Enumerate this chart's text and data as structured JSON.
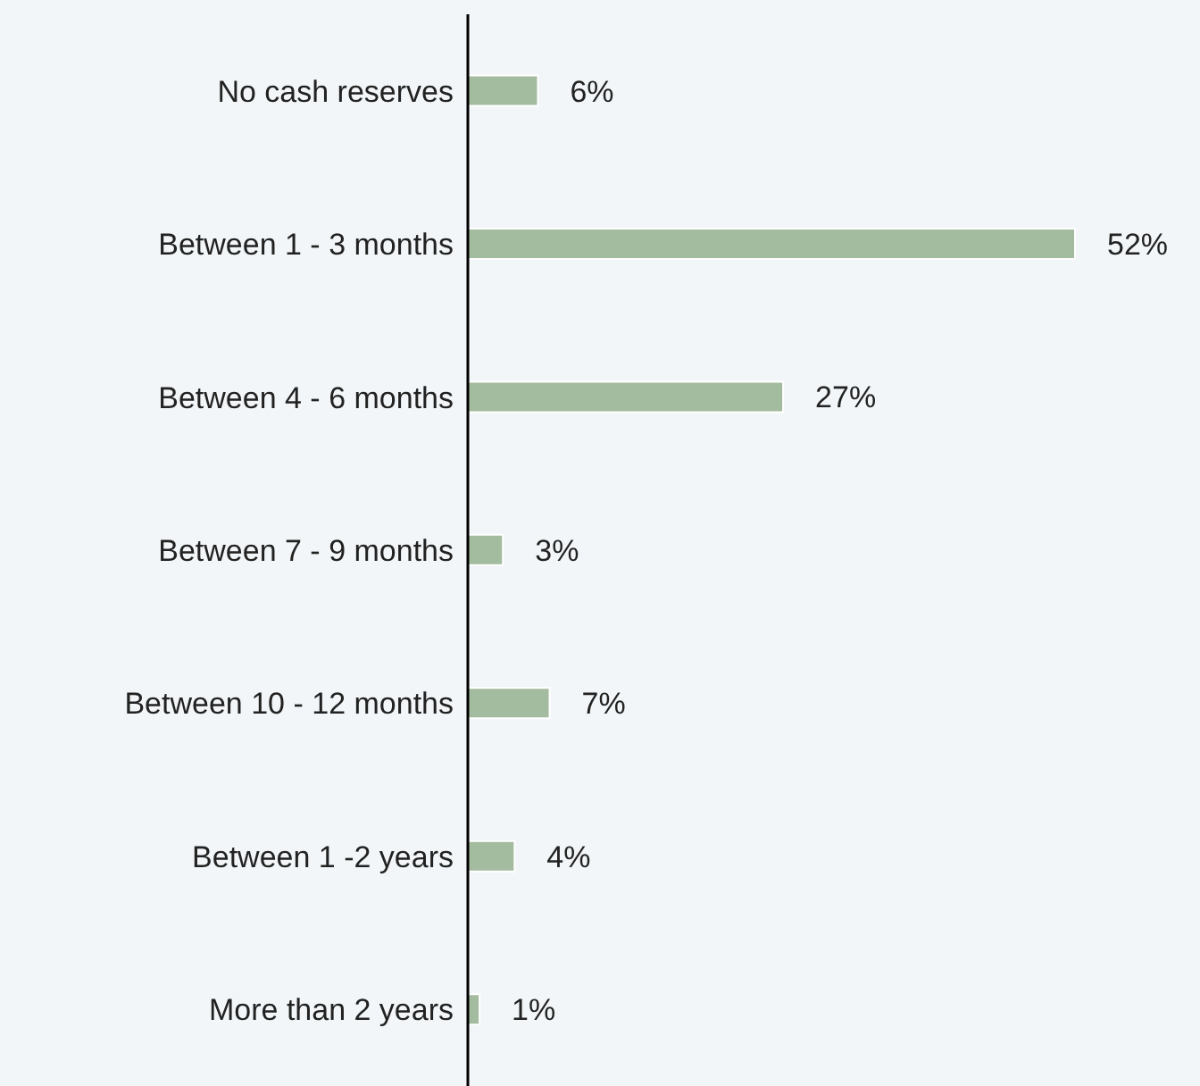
{
  "chart_data": {
    "type": "bar",
    "orientation": "horizontal",
    "categories": [
      "No cash reserves",
      "Between 1 - 3 months",
      "Between 4 - 6 months",
      "Between 7 - 9 months",
      "Between 10 - 12 months",
      "Between 1 -2 years",
      "More than 2 years"
    ],
    "values": [
      6,
      52,
      27,
      3,
      7,
      4,
      1
    ],
    "value_labels": [
      "6%",
      "52%",
      "27%",
      "3%",
      "7%",
      "4%",
      "1%"
    ],
    "color": "#a3bb9e",
    "grid": false,
    "legend": false
  }
}
